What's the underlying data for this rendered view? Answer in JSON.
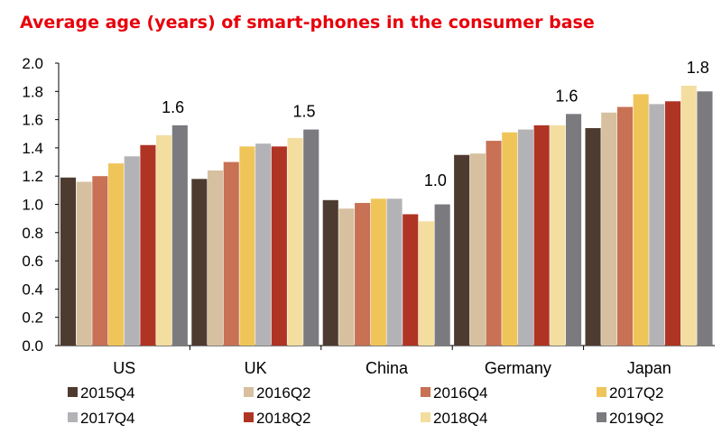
{
  "chart_data": {
    "type": "bar",
    "title": "Average age (years) of smart-phones in the consumer base",
    "xlabel": "",
    "ylabel": "",
    "ylim": [
      0,
      2.0
    ],
    "yticks": [
      "0.0",
      "0.2",
      "0.4",
      "0.6",
      "0.8",
      "1.0",
      "1.2",
      "1.4",
      "1.6",
      "1.8",
      "2.0"
    ],
    "categories": [
      "US",
      "UK",
      "China",
      "Germany",
      "Japan"
    ],
    "series": [
      {
        "name": "2015Q4",
        "color": "#4e3b2f",
        "values": [
          1.19,
          1.18,
          1.03,
          1.35,
          1.54
        ]
      },
      {
        "name": "2016Q2",
        "color": "#d6c09f",
        "values": [
          1.16,
          1.24,
          0.97,
          1.36,
          1.65
        ]
      },
      {
        "name": "2016Q4",
        "color": "#c87155",
        "values": [
          1.2,
          1.3,
          1.01,
          1.45,
          1.69
        ]
      },
      {
        "name": "2017Q2",
        "color": "#efc55a",
        "values": [
          1.29,
          1.41,
          1.04,
          1.51,
          1.78
        ]
      },
      {
        "name": "2017Q4",
        "color": "#b3b3b7",
        "values": [
          1.34,
          1.43,
          1.04,
          1.53,
          1.71
        ]
      },
      {
        "name": "2018Q2",
        "color": "#b03424",
        "values": [
          1.42,
          1.41,
          0.93,
          1.56,
          1.73
        ]
      },
      {
        "name": "2018Q4",
        "color": "#f3dd9f",
        "values": [
          1.49,
          1.47,
          0.88,
          1.56,
          1.84
        ]
      },
      {
        "name": "2019Q2",
        "color": "#7b7b7f",
        "values": [
          1.56,
          1.53,
          1.0,
          1.64,
          1.8
        ]
      }
    ],
    "data_labels": [
      {
        "category": "US",
        "text": "1.6"
      },
      {
        "category": "UK",
        "text": "1.5"
      },
      {
        "category": "China",
        "text": "1.0"
      },
      {
        "category": "Germany",
        "text": "1.6"
      },
      {
        "category": "Japan",
        "text": "1.8"
      }
    ],
    "legend_position": "bottom",
    "grid": false
  }
}
